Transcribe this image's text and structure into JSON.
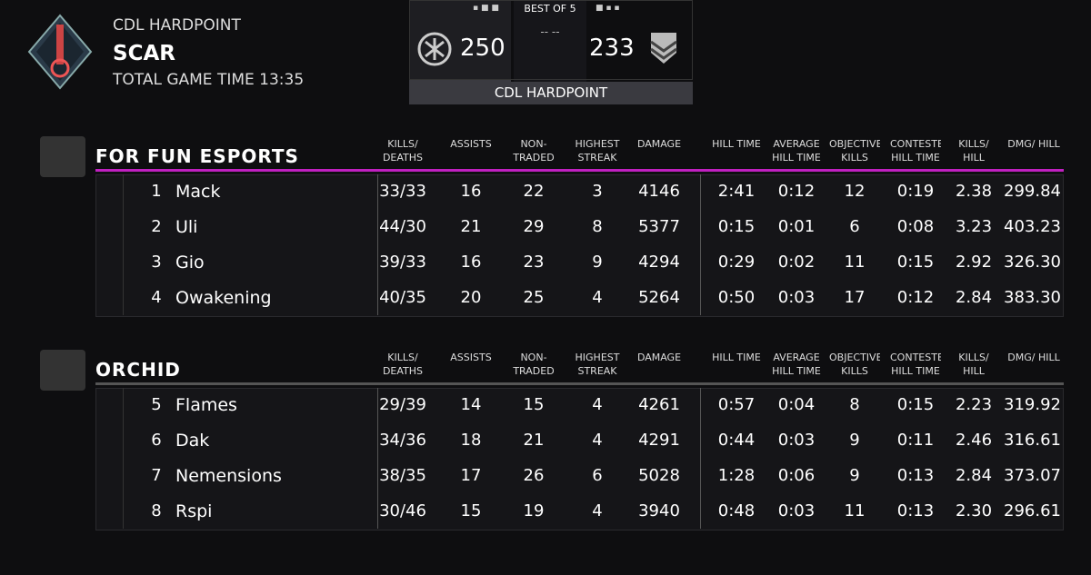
{
  "header": {
    "mode": "CDL HARDPOINT",
    "map": "SCAR",
    "game_time": "TOTAL GAME TIME 13:35"
  },
  "score_box": {
    "series_label": "BEST OF 5",
    "status": "-- --",
    "scores": [
      "250",
      "233"
    ],
    "footer": "CDL HARDPOINT"
  },
  "columns": [
    "KILLS/ DEATHS",
    "ASSISTS",
    "NON-TRADED KILLS",
    "HIGHEST STREAK",
    "DAMAGE",
    "HILL TIME",
    "AVERAGE HILL TIME",
    "OBJECTIVE KILLS",
    "CONTESTED HILL TIME",
    "KILLS/ HILL",
    "DMG/ HILL"
  ],
  "teams": [
    {
      "name": "FOR FUN ESPORTS",
      "rows": [
        [
          "1",
          "Mack",
          "33/33",
          "16",
          "22",
          "3",
          "4146",
          "2:41",
          "0:12",
          "12",
          "0:19",
          "2.38",
          "299.84"
        ],
        [
          "2",
          "Uli",
          "44/30",
          "21",
          "29",
          "8",
          "5377",
          "0:15",
          "0:01",
          "6",
          "0:08",
          "3.23",
          "403.23"
        ],
        [
          "3",
          "Gio",
          "39/33",
          "16",
          "23",
          "9",
          "4294",
          "0:29",
          "0:02",
          "11",
          "0:15",
          "2.92",
          "326.30"
        ],
        [
          "4",
          "Owakening",
          "40/35",
          "20",
          "25",
          "4",
          "5264",
          "0:50",
          "0:03",
          "17",
          "0:12",
          "2.84",
          "383.30"
        ]
      ]
    },
    {
      "name": "ORCHID",
      "rows": [
        [
          "5",
          "Flames",
          "29/39",
          "14",
          "15",
          "4",
          "4261",
          "0:57",
          "0:04",
          "8",
          "0:15",
          "2.23",
          "319.92"
        ],
        [
          "6",
          "Dak",
          "34/36",
          "18",
          "21",
          "4",
          "4291",
          "0:44",
          "0:03",
          "9",
          "0:11",
          "2.46",
          "316.61"
        ],
        [
          "7",
          "Nemensions",
          "38/35",
          "17",
          "26",
          "6",
          "5028",
          "1:28",
          "0:06",
          "9",
          "0:13",
          "2.84",
          "373.07"
        ],
        [
          "8",
          "Rspi",
          "30/46",
          "15",
          "19",
          "4",
          "3940",
          "0:48",
          "0:03",
          "11",
          "0:13",
          "2.30",
          "296.61"
        ]
      ]
    }
  ]
}
